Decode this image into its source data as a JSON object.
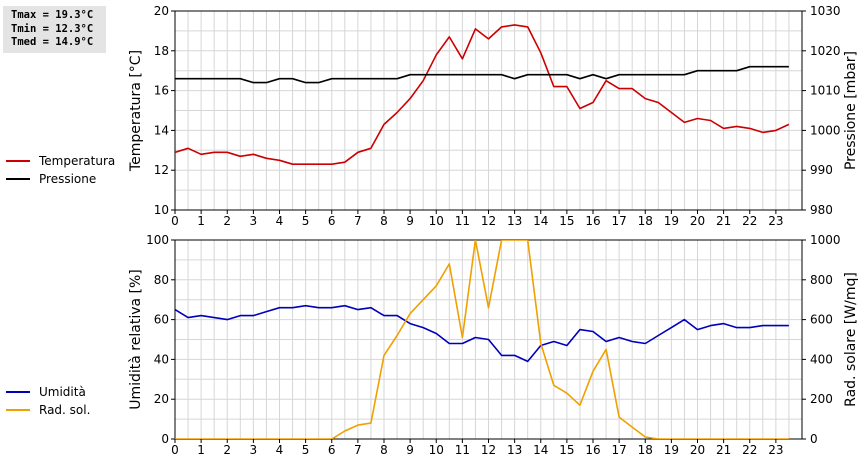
{
  "stats": {
    "tmax": "Tmax = 19.3°C",
    "tmin": "Tmin = 12.3°C",
    "tmed": "Tmed = 14.9°C"
  },
  "legends": {
    "top": [
      {
        "label": "Temperatura",
        "color": "#cc0000"
      },
      {
        "label": "Pressione",
        "color": "#000000"
      }
    ],
    "bottom": [
      {
        "label": "Umidità",
        "color": "#0000bb"
      },
      {
        "label": "Rad. sol.",
        "color": "#f0a000"
      }
    ]
  },
  "chart_data": [
    {
      "type": "line",
      "ylabel": "Temperatura [°C]",
      "y2label": "Pressione [mbar]",
      "xlim": [
        0,
        24
      ],
      "ylim": [
        10,
        20
      ],
      "y2lim": [
        980,
        1030
      ],
      "xticks": [
        "0",
        "1",
        "2",
        "3",
        "4",
        "5",
        "6",
        "7",
        "8",
        "9",
        "10",
        "11",
        "12",
        "13",
        "14",
        "15",
        "16",
        "17",
        "18",
        "19",
        "20",
        "21",
        "22",
        "23"
      ],
      "yticks": [
        "10",
        "12",
        "14",
        "16",
        "18",
        "20"
      ],
      "y2ticks": [
        "980",
        "990",
        "1000",
        "1010",
        "1020",
        "1030"
      ],
      "grid": true,
      "series": [
        {
          "name": "Temperatura",
          "axis": "left",
          "color": "#cc0000",
          "x": [
            0,
            0.5,
            1,
            1.5,
            2,
            2.5,
            3,
            3.5,
            4,
            4.5,
            5,
            5.5,
            6,
            6.5,
            7,
            7.5,
            8,
            8.5,
            9,
            9.5,
            10,
            10.5,
            11,
            11.5,
            12,
            12.5,
            13,
            13.5,
            14,
            14.5,
            15,
            15.5,
            16,
            16.5,
            17,
            17.5,
            18,
            18.5,
            19,
            19.5,
            20,
            20.5,
            21,
            21.5,
            22,
            22.5,
            23,
            23.5
          ],
          "y": [
            12.9,
            13.1,
            12.8,
            12.9,
            12.9,
            12.7,
            12.8,
            12.6,
            12.5,
            12.3,
            12.3,
            12.3,
            12.3,
            12.4,
            12.9,
            13.1,
            14.3,
            14.9,
            15.6,
            16.5,
            17.8,
            18.7,
            17.6,
            19.1,
            18.6,
            19.2,
            19.3,
            19.2,
            17.9,
            16.2,
            16.2,
            15.1,
            15.4,
            16.5,
            16.1,
            16.1,
            15.6,
            15.4,
            14.9,
            14.4,
            14.6,
            14.5,
            14.1,
            14.2,
            14.1,
            13.9,
            14.0,
            14.3
          ]
        },
        {
          "name": "Pressione",
          "axis": "right",
          "color": "#000000",
          "x": [
            0,
            0.5,
            1,
            1.5,
            2,
            2.5,
            3,
            3.5,
            4,
            4.5,
            5,
            5.5,
            6,
            6.5,
            7,
            7.5,
            8,
            8.5,
            9,
            9.5,
            10,
            10.5,
            11,
            11.5,
            12,
            12.5,
            13,
            13.5,
            14,
            14.5,
            15,
            15.5,
            16,
            16.5,
            17,
            17.5,
            18,
            18.5,
            19,
            19.5,
            20,
            20.5,
            21,
            21.5,
            22,
            22.5,
            23,
            23.5
          ],
          "y": [
            1013,
            1013,
            1013,
            1013,
            1013,
            1013,
            1012,
            1012,
            1013,
            1013,
            1012,
            1012,
            1013,
            1013,
            1013,
            1013,
            1013,
            1013,
            1014,
            1014,
            1014,
            1014,
            1014,
            1014,
            1014,
            1014,
            1013,
            1014,
            1014,
            1014,
            1014,
            1013,
            1014,
            1013,
            1014,
            1014,
            1014,
            1014,
            1014,
            1014,
            1015,
            1015,
            1015,
            1015,
            1016,
            1016,
            1016,
            1016
          ]
        }
      ]
    },
    {
      "type": "line",
      "ylabel": "Umidità relativa [%]",
      "y2label": "Rad. solare [W/mq]",
      "xlim": [
        0,
        24
      ],
      "ylim": [
        0,
        100
      ],
      "y2lim": [
        0,
        1000
      ],
      "xticks": [
        "0",
        "1",
        "2",
        "3",
        "4",
        "5",
        "6",
        "7",
        "8",
        "9",
        "10",
        "11",
        "12",
        "13",
        "14",
        "15",
        "16",
        "17",
        "18",
        "19",
        "20",
        "21",
        "22",
        "23"
      ],
      "yticks": [
        "0",
        "20",
        "40",
        "60",
        "80",
        "100"
      ],
      "y2ticks": [
        "0",
        "200",
        "400",
        "600",
        "800",
        "1000"
      ],
      "grid": true,
      "series": [
        {
          "name": "Umidità",
          "axis": "left",
          "color": "#0000bb",
          "x": [
            0,
            0.5,
            1,
            1.5,
            2,
            2.5,
            3,
            3.5,
            4,
            4.5,
            5,
            5.5,
            6,
            6.5,
            7,
            7.5,
            8,
            8.5,
            9,
            9.5,
            10,
            10.5,
            11,
            11.5,
            12,
            12.5,
            13,
            13.5,
            14,
            14.5,
            15,
            15.5,
            16,
            16.5,
            17,
            17.5,
            18,
            18.5,
            19,
            19.5,
            20,
            20.5,
            21,
            21.5,
            22,
            22.5,
            23,
            23.5
          ],
          "y": [
            65,
            61,
            62,
            61,
            60,
            62,
            62,
            64,
            66,
            66,
            67,
            66,
            66,
            67,
            65,
            66,
            62,
            62,
            58,
            56,
            53,
            48,
            48,
            51,
            50,
            42,
            42,
            39,
            47,
            49,
            47,
            55,
            54,
            49,
            51,
            49,
            48,
            52,
            56,
            60,
            55,
            57,
            58,
            56,
            56,
            57,
            57,
            57
          ]
        },
        {
          "name": "Rad. sol.",
          "axis": "right",
          "color": "#f0a000",
          "x": [
            0,
            0.5,
            1,
            1.5,
            2,
            2.5,
            3,
            3.5,
            4,
            4.5,
            5,
            5.5,
            6,
            6.5,
            7,
            7.5,
            8,
            8.5,
            9,
            9.5,
            10,
            10.5,
            11,
            11.5,
            12,
            12.5,
            13,
            13.5,
            14,
            14.5,
            15,
            15.5,
            16,
            16.5,
            17,
            17.5,
            18,
            18.5,
            19,
            19.5,
            20,
            20.5,
            21,
            21.5,
            22,
            22.5,
            23,
            23.5
          ],
          "y": [
            0,
            0,
            0,
            0,
            0,
            0,
            0,
            0,
            0,
            0,
            0,
            0,
            0,
            40,
            70,
            80,
            420,
            520,
            630,
            700,
            770,
            880,
            510,
            1000,
            660,
            1000,
            1000,
            1000,
            480,
            270,
            230,
            170,
            340,
            450,
            110,
            60,
            10,
            0,
            0,
            0,
            0,
            0,
            0,
            0,
            0,
            0,
            0,
            0
          ]
        }
      ]
    }
  ]
}
